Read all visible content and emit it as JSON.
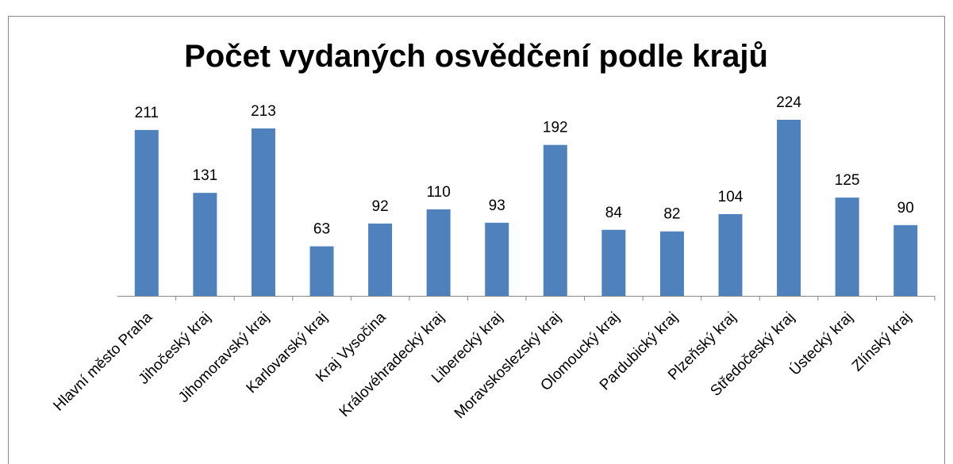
{
  "chart_data": {
    "type": "bar",
    "title": "Počet vydaných osvědčení podle krajů",
    "categories": [
      "Hlavní město Praha",
      "Jihočeský kraj",
      "Jihomoravský kraj",
      "Karlovarský kraj",
      "Kraj Vysočina",
      "Královéhradecký kraj",
      "Liberecký kraj",
      "Moravskoslezský kraj",
      "Olomoucký kraj",
      "Pardubický kraj",
      "Plzeňský kraj",
      "Středočeský kraj",
      "Ústecký kraj",
      "Zlínský kraj"
    ],
    "values": [
      211,
      131,
      213,
      63,
      92,
      110,
      93,
      192,
      84,
      82,
      104,
      224,
      125,
      90
    ],
    "color": "#4f81bd",
    "data_labels": true
  }
}
